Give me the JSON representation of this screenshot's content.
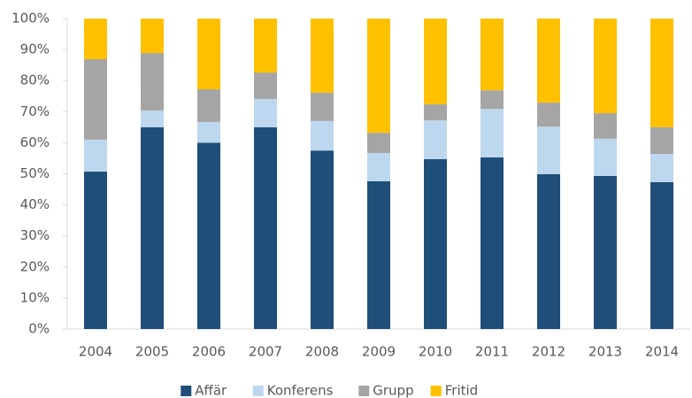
{
  "chart_data": {
    "type": "stacked_bar",
    "categories": [
      "2004",
      "2005",
      "2006",
      "2007",
      "2008",
      "2009",
      "2010",
      "2011",
      "2012",
      "2013",
      "2014"
    ],
    "series": [
      {
        "name": "Affär",
        "color": "#1f4e79",
        "values": [
          50.7,
          65,
          60,
          65,
          57.5,
          47.6,
          54.7,
          55.3,
          49.9,
          49.3,
          47.3
        ]
      },
      {
        "name": "Konferens",
        "color": "#bdd7ee",
        "values": [
          10.3,
          5.4,
          6.7,
          9.1,
          9.5,
          9.1,
          12.5,
          15.6,
          15.3,
          12,
          9.1
        ]
      },
      {
        "name": "Grupp",
        "color": "#a5a5a5",
        "values": [
          25.9,
          18.5,
          10.5,
          8.5,
          9.1,
          6.5,
          5.2,
          6,
          7.7,
          8.2,
          8.6
        ]
      },
      {
        "name": "Fritid",
        "color": "#ffc000",
        "values": [
          13.1,
          11.1,
          22.8,
          17.4,
          23.9,
          36.8,
          27.6,
          23.1,
          27.1,
          30.5,
          35
        ]
      }
    ],
    "ylim": [
      0,
      100
    ],
    "yticks": [
      {
        "value": 0,
        "label": "0%"
      },
      {
        "value": 10,
        "label": "10%"
      },
      {
        "value": 20,
        "label": "20%"
      },
      {
        "value": 30,
        "label": "30%"
      },
      {
        "value": 40,
        "label": "40%"
      },
      {
        "value": 50,
        "label": "50%"
      },
      {
        "value": 60,
        "label": "60%"
      },
      {
        "value": 70,
        "label": "70%"
      },
      {
        "value": 80,
        "label": "80%"
      },
      {
        "value": 90,
        "label": "90%"
      },
      {
        "value": 100,
        "label": "100%"
      }
    ],
    "legend": "bottom"
  }
}
